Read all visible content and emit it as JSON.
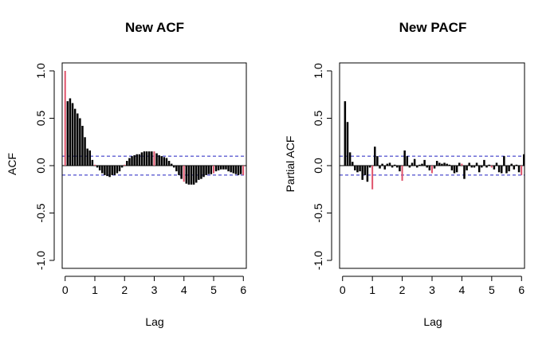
{
  "chart_data": [
    {
      "type": "bar",
      "title": "New ACF",
      "xlabel": "Lag",
      "ylabel": "ACF",
      "xlim": [
        -0.1,
        6.1
      ],
      "ylim": [
        -1.0,
        1.0
      ],
      "x_ticks": [
        "0",
        "1",
        "2",
        "3",
        "4",
        "5",
        "6"
      ],
      "y_ticks": [
        "-1.0",
        "-0.5",
        "0.0",
        "0.5",
        "1.0"
      ],
      "grid": false,
      "confidence_bounds": [
        -0.1,
        0.1
      ],
      "season_lags": [
        0,
        1,
        2,
        3,
        4,
        5,
        6
      ],
      "lag_step": 0.0833,
      "values": [
        1.0,
        0.68,
        0.71,
        0.66,
        0.6,
        0.55,
        0.5,
        0.42,
        0.3,
        0.18,
        0.16,
        0.06,
        0.01,
        -0.02,
        -0.05,
        -0.08,
        -0.1,
        -0.11,
        -0.12,
        -0.1,
        -0.1,
        -0.08,
        -0.06,
        -0.02,
        0.01,
        0.05,
        0.08,
        0.1,
        0.11,
        0.12,
        0.12,
        0.14,
        0.15,
        0.15,
        0.15,
        0.15,
        0.15,
        0.13,
        0.11,
        0.1,
        0.09,
        0.08,
        0.05,
        0.02,
        -0.02,
        -0.06,
        -0.1,
        -0.14,
        -0.17,
        -0.19,
        -0.2,
        -0.2,
        -0.2,
        -0.18,
        -0.15,
        -0.14,
        -0.12,
        -0.1,
        -0.09,
        -0.09,
        -0.08,
        -0.06,
        -0.05,
        -0.04,
        -0.04,
        -0.04,
        -0.06,
        -0.07,
        -0.08,
        -0.09,
        -0.1,
        -0.09,
        -0.1
      ],
      "bar_color": "#000000",
      "season_bar_color": "#DF536B",
      "bound_color": "#2020C0"
    },
    {
      "type": "bar",
      "title": "New PACF",
      "xlabel": "Lag",
      "ylabel": "Partial ACF",
      "xlim": [
        -0.1,
        6.1
      ],
      "ylim": [
        -1.0,
        1.0
      ],
      "x_ticks": [
        "0",
        "1",
        "2",
        "3",
        "4",
        "5",
        "6"
      ],
      "y_ticks": [
        "-1.0",
        "-0.5",
        "0.0",
        "0.5",
        "1.0"
      ],
      "grid": false,
      "confidence_bounds": [
        -0.1,
        0.1
      ],
      "season_lags": [
        1,
        2,
        3,
        4,
        5,
        6
      ],
      "lag_step": 0.0833,
      "first_lag": 0.0833,
      "values": [
        0.68,
        0.46,
        0.14,
        0.04,
        -0.05,
        -0.07,
        -0.06,
        -0.15,
        -0.1,
        -0.17,
        -0.02,
        -0.25,
        0.2,
        0.1,
        -0.03,
        0.02,
        -0.04,
        0.02,
        0.03,
        -0.02,
        0.01,
        -0.02,
        -0.06,
        -0.16,
        0.16,
        0.1,
        -0.02,
        0.03,
        0.07,
        -0.02,
        0.01,
        0.02,
        0.06,
        -0.02,
        -0.05,
        -0.08,
        -0.03,
        0.05,
        0.03,
        0.02,
        0.03,
        0.02,
        0.01,
        -0.05,
        -0.08,
        -0.07,
        0.03,
        0.02,
        -0.14,
        -0.05,
        0.03,
        -0.02,
        -0.02,
        0.03,
        -0.07,
        -0.02,
        0.06,
        -0.02,
        0.01,
        -0.02,
        -0.04,
        0.03,
        -0.07,
        -0.08,
        0.1,
        -0.08,
        -0.06,
        0.02,
        -0.04,
        0.01,
        -0.07,
        -0.1,
        0.12
      ],
      "bar_color": "#000000",
      "season_bar_color": "#DF536B",
      "bound_color": "#2020C0"
    }
  ]
}
